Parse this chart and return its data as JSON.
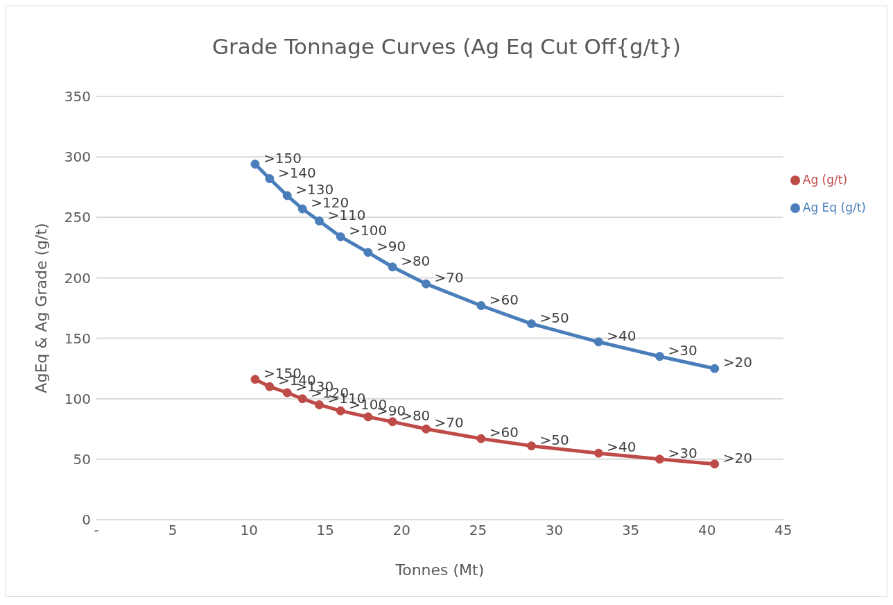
{
  "chart_data": {
    "type": "line",
    "title": "Grade Tonnage Curves (Ag Eq Cut Off{g/t})",
    "xlabel": "Tonnes (Mt)",
    "ylabel": "AgEq & Ag Grade (g/t)",
    "x": [
      10.4,
      11.35,
      12.5,
      13.5,
      14.6,
      16.0,
      17.8,
      19.4,
      21.6,
      25.2,
      28.5,
      32.9,
      36.9,
      40.5
    ],
    "series": [
      {
        "name": "Ag Eq (g/t)",
        "color": "#4a7ebb",
        "values": [
          294,
          282,
          268,
          257,
          247,
          234,
          221,
          209,
          195,
          177,
          162,
          147,
          135,
          125
        ],
        "value_labels": [
          ">150",
          ">140",
          ">130",
          ">120",
          ">110",
          ">100",
          ">90",
          ">80",
          ">70",
          ">60",
          ">50",
          ">40",
          ">30",
          ">20"
        ]
      },
      {
        "name": "Ag (g/t)",
        "color": "#be4b48",
        "values": [
          116,
          110,
          105,
          100,
          95,
          90,
          85,
          81,
          75,
          67,
          61,
          55,
          50,
          46
        ],
        "value_labels": [
          ">150",
          ">140",
          ">130",
          ">120",
          ">110",
          ">100",
          ">90",
          ">80",
          ">70",
          ">60",
          ">50",
          ">40",
          ">30",
          ">20"
        ]
      }
    ],
    "xlim": [
      0,
      45
    ],
    "xticks": [
      {
        "value": 0,
        "label": "-"
      },
      5,
      10,
      15,
      20,
      25,
      30,
      35,
      40,
      45
    ],
    "ylim": [
      0,
      350
    ],
    "yticks": [
      0,
      50,
      100,
      150,
      200,
      250,
      300,
      350
    ],
    "grid": "y",
    "legend": "top right",
    "marker": "circle",
    "line_style": "solid"
  }
}
